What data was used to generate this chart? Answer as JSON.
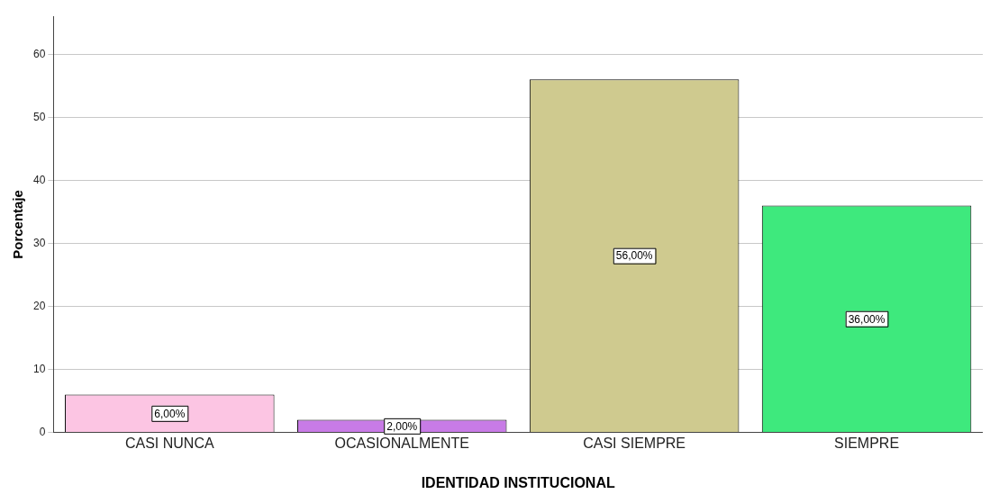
{
  "chart_data": {
    "type": "bar",
    "xlabel": "IDENTIDAD INSTITUCIONAL",
    "ylabel": "Porcentaje",
    "categories": [
      "CASI NUNCA",
      "OCASIONALMENTE",
      "CASI SIEMPRE",
      "SIEMPRE"
    ],
    "values": [
      6,
      2,
      56,
      36
    ],
    "colors": [
      "#fcc5e3",
      "#c87be6",
      "#cfca8f",
      "#3ee97d"
    ],
    "value_labels": [
      "6,00%",
      "2,00%",
      "56,00%",
      "36,00%"
    ],
    "ylim": [
      0,
      66
    ],
    "yticks": [
      0,
      10,
      20,
      30,
      40,
      50,
      60
    ],
    "grid": "y",
    "legend": false
  }
}
